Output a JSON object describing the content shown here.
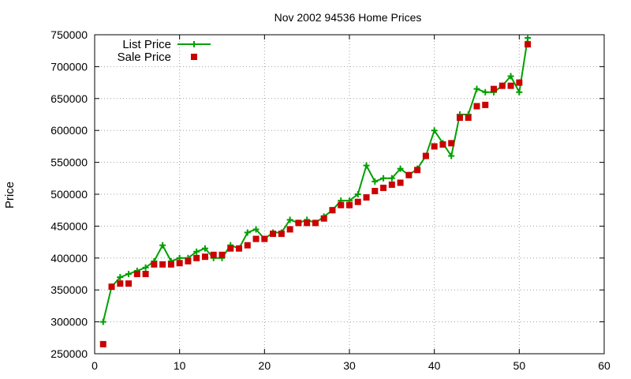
{
  "chart_data": {
    "type": "scatter",
    "title": "Nov 2002 94536 Home Prices",
    "xlabel": "",
    "ylabel": "Price",
    "xlim": [
      0,
      60
    ],
    "ylim": [
      250000,
      750000
    ],
    "xticks": [
      0,
      10,
      20,
      30,
      40,
      50,
      60
    ],
    "yticks": [
      250000,
      300000,
      350000,
      400000,
      450000,
      500000,
      550000,
      600000,
      650000,
      700000,
      750000
    ],
    "grid": true,
    "legend_position": "top-left",
    "series": [
      {
        "name": "List Price",
        "style": "line-with-plus-markers",
        "color": "#00a000",
        "x": [
          1,
          2,
          3,
          4,
          5,
          6,
          7,
          8,
          9,
          10,
          11,
          12,
          13,
          14,
          15,
          16,
          17,
          18,
          19,
          20,
          21,
          22,
          23,
          24,
          25,
          26,
          27,
          28,
          29,
          30,
          31,
          32,
          33,
          34,
          35,
          36,
          37,
          38,
          39,
          40,
          41,
          42,
          43,
          44,
          45,
          46,
          47,
          48,
          49,
          50,
          51
        ],
        "y": [
          300000,
          355000,
          370000,
          375000,
          380000,
          385000,
          395000,
          420000,
          395000,
          400000,
          400000,
          410000,
          415000,
          400000,
          400000,
          420000,
          415000,
          440000,
          445000,
          430000,
          440000,
          440000,
          460000,
          455000,
          460000,
          455000,
          465000,
          475000,
          490000,
          490000,
          500000,
          545000,
          520000,
          525000,
          525000,
          540000,
          530000,
          540000,
          560000,
          600000,
          580000,
          560000,
          625000,
          625000,
          665000,
          660000,
          660000,
          670000,
          685000,
          660000,
          745000
        ]
      },
      {
        "name": "Sale Price",
        "style": "square-markers",
        "color": "#cc0000",
        "x": [
          1,
          2,
          3,
          4,
          5,
          6,
          7,
          8,
          9,
          10,
          11,
          12,
          13,
          14,
          15,
          16,
          17,
          18,
          19,
          20,
          21,
          22,
          23,
          24,
          25,
          26,
          27,
          28,
          29,
          30,
          31,
          32,
          33,
          34,
          35,
          36,
          37,
          38,
          39,
          40,
          41,
          42,
          43,
          44,
          45,
          46,
          47,
          48,
          49,
          50,
          51
        ],
        "y": [
          265000,
          355000,
          360000,
          360000,
          375000,
          375000,
          390000,
          390000,
          390000,
          392000,
          395000,
          400000,
          402000,
          405000,
          405000,
          415000,
          415000,
          420000,
          430000,
          430000,
          438000,
          438000,
          445000,
          455000,
          455000,
          455000,
          462000,
          475000,
          483000,
          483000,
          488000,
          495000,
          505000,
          510000,
          515000,
          518000,
          530000,
          538000,
          560000,
          575000,
          578000,
          580000,
          620000,
          620000,
          638000,
          640000,
          665000,
          670000,
          670000,
          675000,
          735000
        ]
      }
    ]
  }
}
